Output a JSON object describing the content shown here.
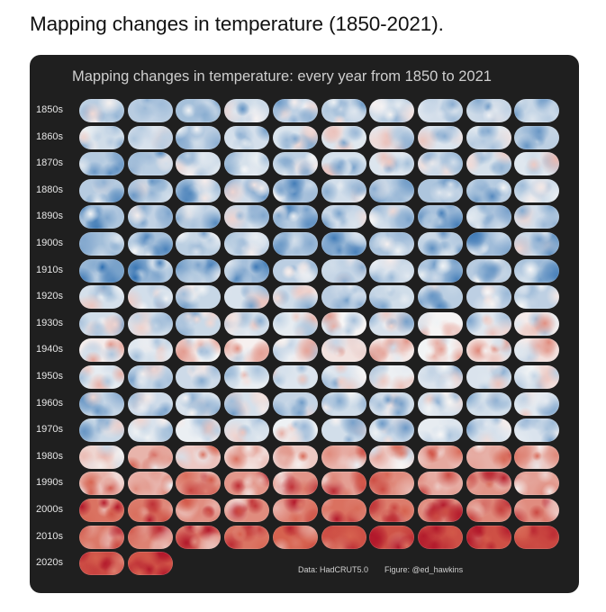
{
  "post": {
    "title": "Mapping changes in temperature (1850-2021)."
  },
  "figure": {
    "title": "Mapping changes in temperature: every year from 1850 to 2021",
    "data_credit": "Data: HadCRUT5.0",
    "figure_credit": "Figure: @ed_hawkins"
  },
  "chart_data": {
    "type": "heatmap",
    "description_of_cells": "Each cell is a small world map of temperature anomaly for one year",
    "rows": [
      "1850s",
      "1860s",
      "1870s",
      "1880s",
      "1890s",
      "1900s",
      "1910s",
      "1920s",
      "1930s",
      "1940s",
      "1950s",
      "1960s",
      "1970s",
      "1980s",
      "1990s",
      "2000s",
      "2010s",
      "2020s"
    ],
    "columns_per_row": [
      10,
      10,
      10,
      10,
      10,
      10,
      10,
      10,
      10,
      10,
      10,
      10,
      10,
      10,
      10,
      10,
      10,
      2
    ],
    "year_range": [
      1850,
      2021
    ],
    "colors": {
      "cold": "#2166ac",
      "neutral": "#f7f7f7",
      "warm": "#d6604d",
      "hot": "#b2182b"
    },
    "row_warmth": [
      -0.35,
      -0.3,
      -0.25,
      -0.35,
      -0.4,
      -0.45,
      -0.45,
      -0.3,
      -0.15,
      -0.05,
      -0.2,
      -0.2,
      -0.2,
      0.25,
      0.45,
      0.6,
      0.75,
      0.85
    ]
  }
}
